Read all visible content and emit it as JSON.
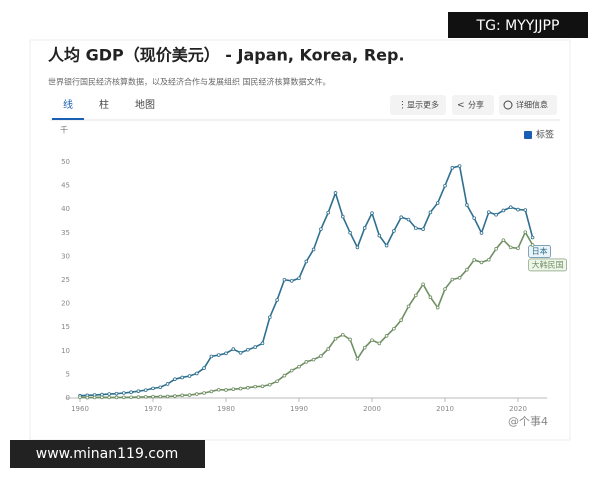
{
  "overlay": {
    "tag": "TG: MYYJJPP",
    "site": "www.minan119.com",
    "watermark": "@个事4"
  },
  "header": {
    "title": "人均 GDP（现价美元） - Japan, Korea, Rep.",
    "subtitle": "世界银行国民经济核算数据，以及经济合作与发展组织 国民经济核算数据文件。"
  },
  "tabs": [
    "线",
    "柱",
    "地图"
  ],
  "buttons": [
    "显示更多",
    "分享",
    "详细信息"
  ],
  "labels_toggle": "标签",
  "chart_data": {
    "type": "line",
    "y_unit": "千",
    "x": [
      1960,
      1961,
      1962,
      1963,
      1964,
      1965,
      1966,
      1967,
      1968,
      1969,
      1970,
      1971,
      1972,
      1973,
      1974,
      1975,
      1976,
      1977,
      1978,
      1979,
      1980,
      1981,
      1982,
      1983,
      1984,
      1985,
      1986,
      1987,
      1988,
      1989,
      1990,
      1991,
      1992,
      1993,
      1994,
      1995,
      1996,
      1997,
      1998,
      1999,
      2000,
      2001,
      2002,
      2003,
      2004,
      2005,
      2006,
      2007,
      2008,
      2009,
      2010,
      2011,
      2012,
      2013,
      2014,
      2015,
      2016,
      2017,
      2018,
      2019,
      2020,
      2021,
      2022
    ],
    "series": [
      {
        "name": "日本",
        "color": "#2f6f8f",
        "values": [
          0.48,
          0.56,
          0.63,
          0.72,
          0.84,
          0.92,
          1.06,
          1.23,
          1.45,
          1.67,
          2.04,
          2.27,
          2.97,
          3.99,
          4.35,
          4.66,
          5.2,
          6.34,
          8.82,
          9.1,
          9.46,
          10.36,
          9.58,
          10.21,
          10.79,
          11.58,
          17.11,
          20.75,
          25.05,
          24.81,
          25.36,
          28.93,
          31.47,
          35.77,
          39.27,
          43.44,
          38.44,
          35.02,
          31.9,
          36.03,
          39.17,
          34.41,
          32.29,
          35.39,
          38.3,
          37.81,
          35.99,
          35.78,
          39.34,
          41.31,
          44.97,
          48.76,
          49.15,
          40.9,
          38.1,
          34.96,
          39.38,
          38.83,
          39.73,
          40.42,
          39.92,
          39.83,
          34.0
        ]
      },
      {
        "name": "大韩民国",
        "color": "#6f8f63",
        "values": [
          0.16,
          0.09,
          0.11,
          0.14,
          0.12,
          0.11,
          0.13,
          0.16,
          0.19,
          0.24,
          0.28,
          0.31,
          0.33,
          0.41,
          0.56,
          0.62,
          0.83,
          1.06,
          1.4,
          1.75,
          1.7,
          1.87,
          1.99,
          2.18,
          2.41,
          2.48,
          2.83,
          3.55,
          4.75,
          5.82,
          6.64,
          7.66,
          8.13,
          8.88,
          10.39,
          12.56,
          13.4,
          12.4,
          8.28,
          10.67,
          12.26,
          11.56,
          13.17,
          14.67,
          16.5,
          19.4,
          21.74,
          24.09,
          21.35,
          19.14,
          23.08,
          25.1,
          25.46,
          27.18,
          29.25,
          28.73,
          29.29,
          31.6,
          33.45,
          31.9,
          31.72,
          35.14,
          32.42
        ]
      }
    ],
    "xlim": [
      1958,
      2024
    ],
    "xticks": [
      1960,
      1970,
      1980,
      1990,
      2000,
      2010,
      2020
    ],
    "ylim": [
      0,
      50
    ],
    "yticks": [
      0,
      5,
      10,
      15,
      20,
      25,
      30,
      35,
      40,
      45,
      50
    ],
    "grid": false
  }
}
